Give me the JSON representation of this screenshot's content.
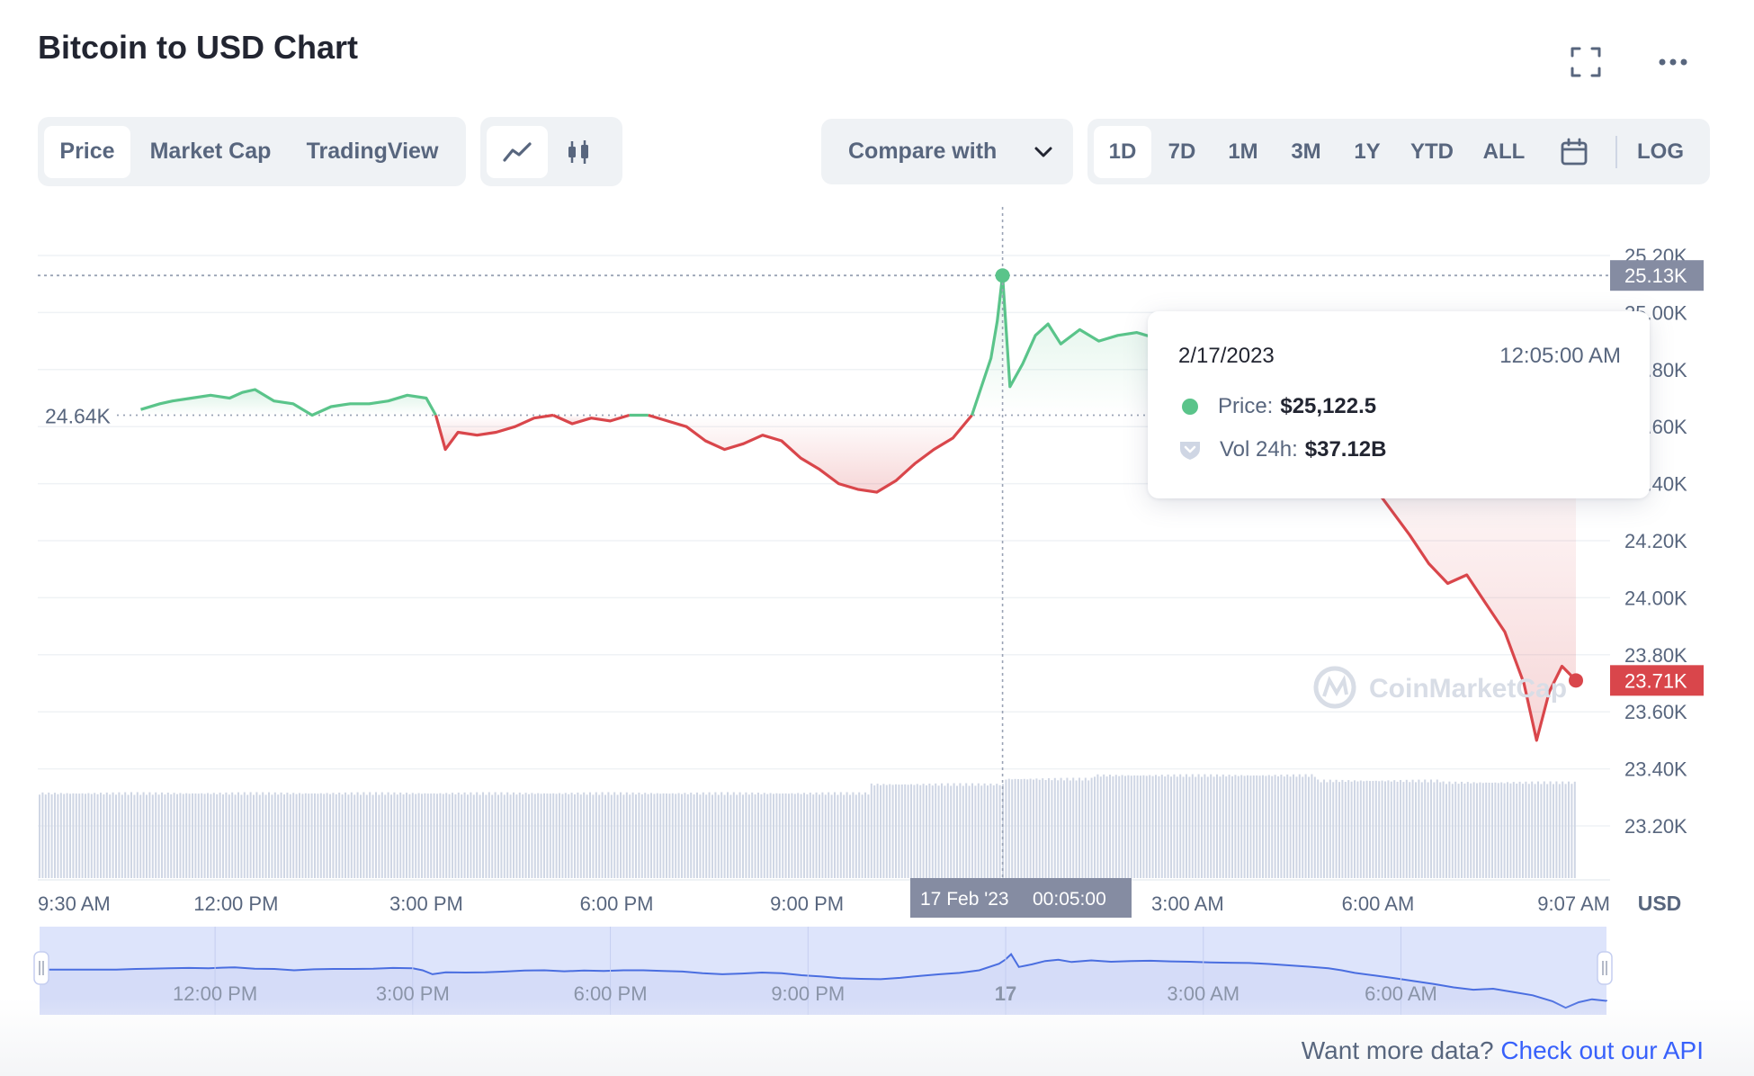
{
  "header": {
    "title": "Bitcoin to USD Chart",
    "expand_icon": "expand-icon",
    "more_icon": "more-dots-icon"
  },
  "view_tabs": [
    {
      "label": "Price",
      "active": true
    },
    {
      "label": "Market Cap",
      "active": false
    },
    {
      "label": "TradingView",
      "active": false
    }
  ],
  "chart_types": [
    {
      "icon": "line-chart-icon",
      "active": true
    },
    {
      "icon": "candlestick-icon",
      "active": false
    }
  ],
  "compare": {
    "label": "Compare with",
    "icon": "chevron-down-icon"
  },
  "ranges": [
    {
      "label": "1D",
      "active": true
    },
    {
      "label": "7D",
      "active": false
    },
    {
      "label": "1M",
      "active": false
    },
    {
      "label": "3M",
      "active": false
    },
    {
      "label": "1Y",
      "active": false
    },
    {
      "label": "YTD",
      "active": false
    },
    {
      "label": "ALL",
      "active": false
    }
  ],
  "calendar_icon": "calendar-icon",
  "log_label": "LOG",
  "colors": {
    "up": "#5ac48a",
    "down": "#d9464b",
    "axis_text": "#58667e",
    "crosshair_label_bg": "#858ca2",
    "volume": "#cfd6e4",
    "navigator_fill": "#dde4fb",
    "navigator_line": "#4a6ee0"
  },
  "chart_data": {
    "type": "line",
    "currency": "USD",
    "y_ticks": [
      "25.20K",
      "25.00K",
      "24.80K",
      "24.60K",
      "24.40K",
      "24.20K",
      "24.00K",
      "23.80K",
      "23.60K",
      "23.40K",
      "23.20K"
    ],
    "ylim": [
      23.0,
      25.3
    ],
    "x_ticks": [
      "9:30 AM",
      "12:00 PM",
      "3:00 PM",
      "6:00 PM",
      "9:00 PM",
      "17",
      "3:00 AM",
      "6:00 AM",
      "9:07 AM"
    ],
    "x_hours": [
      9.5,
      12,
      15,
      18,
      21,
      24,
      27,
      30,
      33.12
    ],
    "reference_price_label": "24.64K",
    "reference_price": 24.64,
    "high_label": "25.13K",
    "last_label": "23.71K",
    "price_series": {
      "name": "Price",
      "x_hours": [
        10.5,
        10.8,
        11.0,
        11.3,
        11.6,
        11.9,
        12.1,
        12.3,
        12.6,
        12.9,
        13.2,
        13.5,
        13.8,
        14.1,
        14.4,
        14.7,
        15.0,
        15.15,
        15.3,
        15.5,
        15.8,
        16.1,
        16.4,
        16.7,
        17.0,
        17.3,
        17.6,
        17.9,
        18.2,
        18.5,
        18.8,
        19.1,
        19.4,
        19.7,
        20.0,
        20.3,
        20.6,
        20.9,
        21.2,
        21.5,
        21.8,
        22.1,
        22.4,
        22.7,
        23.0,
        23.3,
        23.6,
        23.9,
        24.0,
        24.083,
        24.2,
        24.4,
        24.6,
        24.8,
        25.0,
        25.3,
        25.6,
        25.9,
        26.2,
        26.5,
        26.8,
        27.1,
        27.4,
        27.7,
        28.0,
        28.3,
        28.6,
        28.9,
        29.1,
        29.3,
        29.6,
        29.9,
        30.2,
        30.5,
        30.8,
        31.1,
        31.4,
        31.7,
        32.0,
        32.3,
        32.5,
        32.7,
        32.9,
        33.12
      ],
      "values": [
        24.66,
        24.68,
        24.69,
        24.7,
        24.71,
        24.7,
        24.72,
        24.73,
        24.69,
        24.68,
        24.64,
        24.67,
        24.68,
        24.68,
        24.69,
        24.71,
        24.7,
        24.64,
        24.52,
        24.58,
        24.57,
        24.58,
        24.6,
        24.63,
        24.64,
        24.61,
        24.63,
        24.62,
        24.64,
        24.64,
        24.62,
        24.6,
        24.55,
        24.52,
        24.54,
        24.57,
        24.55,
        24.49,
        24.45,
        24.4,
        24.38,
        24.37,
        24.41,
        24.47,
        24.52,
        24.56,
        24.64,
        24.84,
        24.97,
        25.13,
        24.74,
        24.82,
        24.92,
        24.96,
        24.89,
        24.94,
        24.9,
        24.92,
        24.93,
        24.91,
        24.9,
        24.88,
        24.87,
        24.86,
        24.83,
        24.79,
        24.75,
        24.7,
        24.64,
        24.56,
        24.48,
        24.4,
        24.31,
        24.22,
        24.12,
        24.05,
        24.08,
        23.98,
        23.88,
        23.7,
        23.5,
        23.67,
        23.76,
        23.71
      ]
    },
    "volume_series": {
      "name": "Vol 24h"
    },
    "crosshair": {
      "x_label_date": "17 Feb '23",
      "x_label_time": "00:05:00"
    },
    "tooltip": {
      "date": "2/17/2023",
      "time": "12:05:00 AM",
      "price_label": "Price:",
      "price_value": "$25,122.5",
      "vol_label": "Vol 24h:",
      "vol_value": "$37.12B"
    },
    "navigator": {
      "x_ticks": [
        "12:00 PM",
        "3:00 PM",
        "6:00 PM",
        "9:00 PM",
        "17",
        "3:00 AM",
        "6:00 AM"
      ]
    },
    "watermark": "CoinMarketCap"
  },
  "footer": {
    "text": "Want more data?",
    "link": "Check out our API"
  }
}
